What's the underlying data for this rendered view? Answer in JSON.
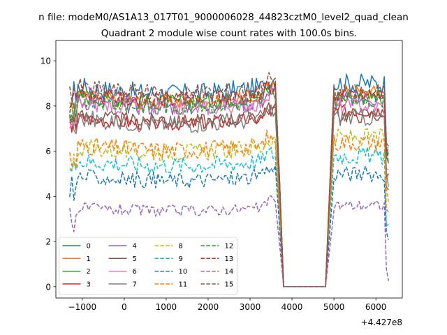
{
  "chart_data": {
    "type": "line",
    "suptitle": "n file: modeM0/AS1A13_017T01_9000006028_44823cztM0_level2_quad_clean",
    "title": "Quadrant 2 module wise count rates with 100.0s bins.",
    "xlabel": "",
    "ylabel": "",
    "x_offset_label": "+4.427e8",
    "xlim": [
      -1630,
      6630
    ],
    "ylim": [
      -0.5,
      10.9
    ],
    "x_ticks": [
      -1000,
      0,
      1000,
      2000,
      3000,
      4000,
      5000,
      6000
    ],
    "x_tick_labels": [
      "−1000",
      "0",
      "1000",
      "2000",
      "3000",
      "4000",
      "5000",
      "6000"
    ],
    "y_ticks": [
      0,
      2,
      4,
      6,
      8,
      10
    ],
    "y_tick_labels": [
      "0",
      "2",
      "4",
      "6",
      "8",
      "10"
    ],
    "grid": false,
    "legend_position": "lower-left",
    "legend_columns": 4,
    "segments": [
      {
        "x_start": -1300,
        "x_end": 3600
      },
      {
        "x_start": 5000,
        "x_end": 6300
      }
    ],
    "gap": {
      "x_start": 3800,
      "x_end": 4800,
      "value": 0
    },
    "series": [
      {
        "name": "0",
        "mean": 8.9,
        "segment2_mean": 9.0,
        "noise": 0.45,
        "style": "solid",
        "color": "#1f77b4"
      },
      {
        "name": "1",
        "mean": 8.5,
        "segment2_mean": 8.6,
        "noise": 0.35,
        "style": "solid",
        "color": "#ff7f0e"
      },
      {
        "name": "2",
        "mean": 8.5,
        "segment2_mean": 8.4,
        "noise": 0.35,
        "style": "solid",
        "color": "#2ca02c"
      },
      {
        "name": "3",
        "mean": 7.5,
        "segment2_mean": 7.8,
        "noise": 0.3,
        "style": "solid",
        "color": "#d62728"
      },
      {
        "name": "4",
        "mean": 8.3,
        "segment2_mean": 8.3,
        "noise": 0.4,
        "style": "solid",
        "color": "#9467bd"
      },
      {
        "name": "5",
        "mean": 7.6,
        "segment2_mean": 7.6,
        "noise": 0.35,
        "style": "solid",
        "color": "#8c564b"
      },
      {
        "name": "6",
        "mean": 8.2,
        "segment2_mean": 8.0,
        "noise": 0.35,
        "style": "solid",
        "color": "#e377c2"
      },
      {
        "name": "7",
        "mean": 7.5,
        "segment2_mean": 7.5,
        "noise": 0.4,
        "style": "solid",
        "color": "#7f7f7f"
      },
      {
        "name": "8",
        "mean": 6.2,
        "segment2_mean": 6.6,
        "noise": 0.4,
        "style": "dashed",
        "color": "#bcbd22"
      },
      {
        "name": "9",
        "mean": 5.6,
        "segment2_mean": 5.8,
        "noise": 0.4,
        "style": "dashed",
        "color": "#17becf"
      },
      {
        "name": "10",
        "mean": 4.9,
        "segment2_mean": 5.0,
        "noise": 0.35,
        "style": "dashed",
        "color": "#1f77b4"
      },
      {
        "name": "11",
        "mean": 6.3,
        "segment2_mean": 6.4,
        "noise": 0.4,
        "style": "dashed",
        "color": "#ff7f0e"
      },
      {
        "name": "12",
        "mean": 8.3,
        "segment2_mean": 8.3,
        "noise": 0.35,
        "style": "dashed",
        "color": "#2ca02c"
      },
      {
        "name": "13",
        "mean": 8.6,
        "segment2_mean": 8.5,
        "noise": 0.35,
        "style": "dashed",
        "color": "#d62728"
      },
      {
        "name": "14",
        "mean": 3.5,
        "segment2_mean": 3.6,
        "noise": 0.25,
        "style": "dashed",
        "color": "#9467bd"
      },
      {
        "name": "15",
        "mean": 8.9,
        "segment2_mean": 8.6,
        "noise": 0.4,
        "style": "dashed",
        "color": "#8c564b"
      }
    ]
  }
}
